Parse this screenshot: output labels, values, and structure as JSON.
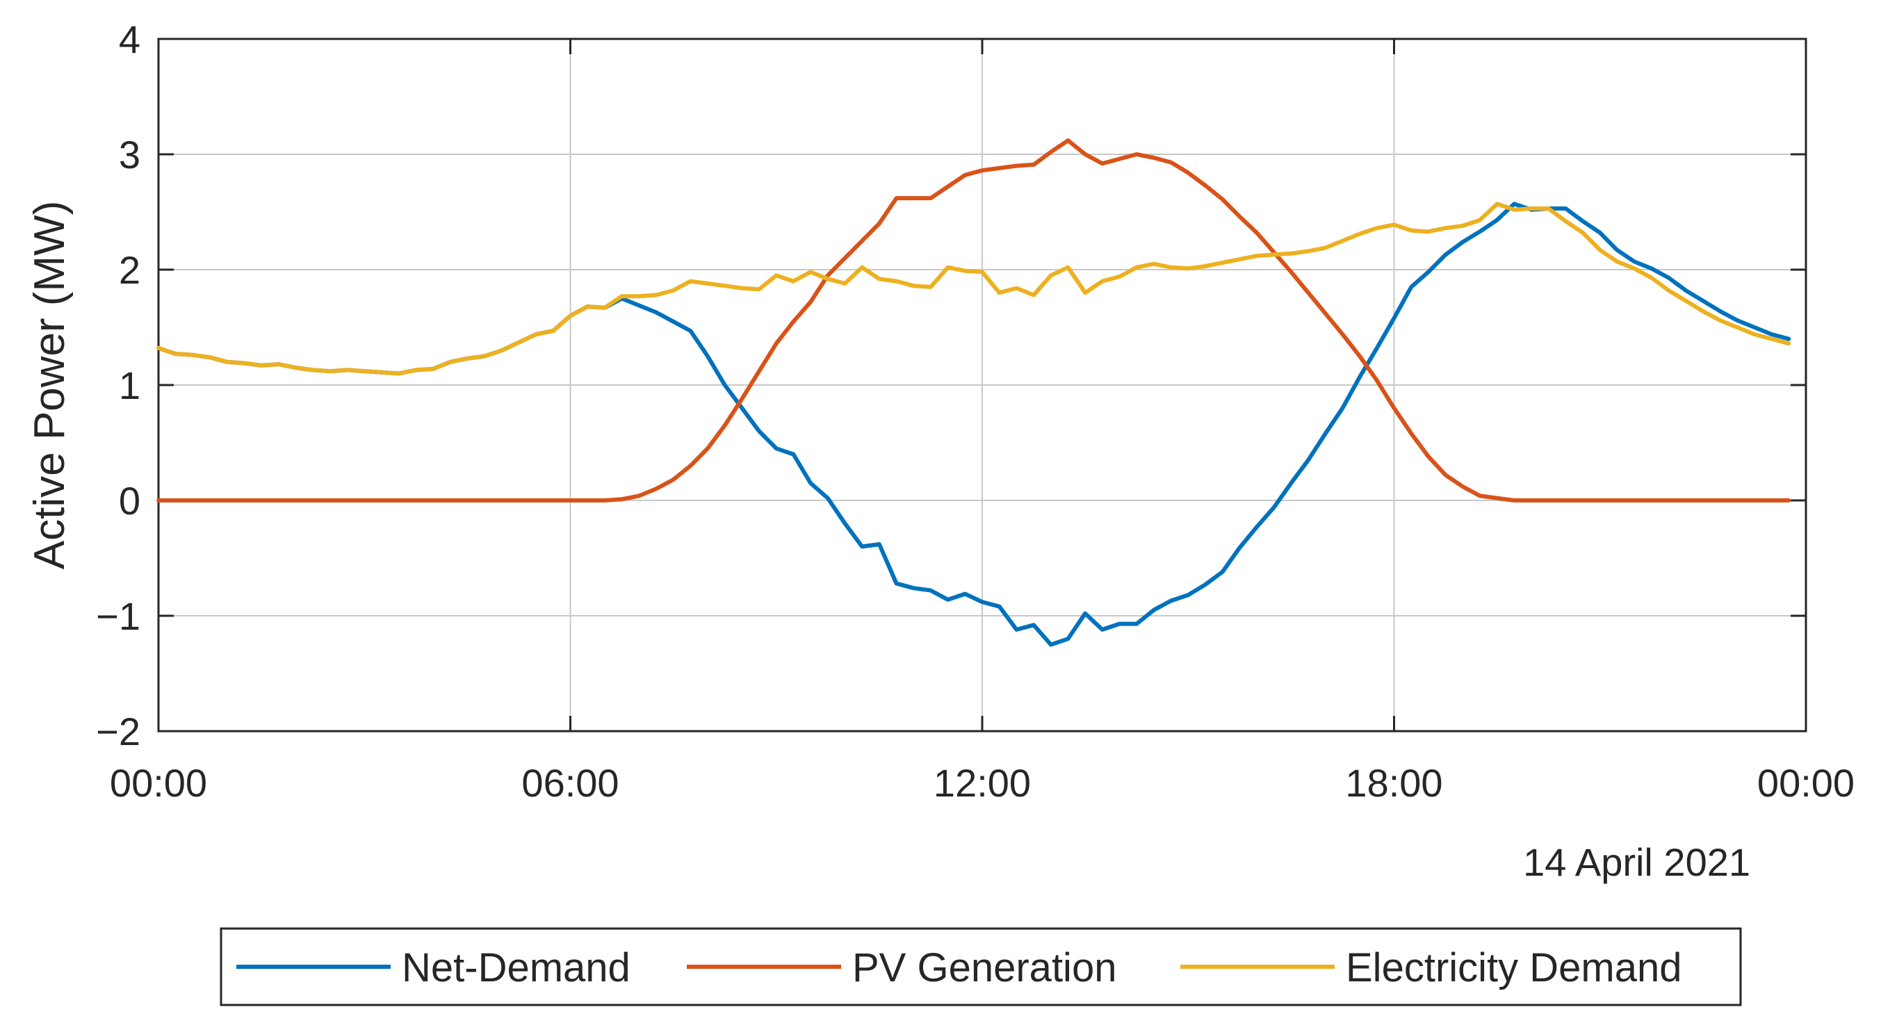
{
  "chart_data": {
    "type": "line",
    "title": "",
    "xlabel": "",
    "ylabel": "Active Power (MW)",
    "date_label": "14 April 2021",
    "x_range_hours": [
      0,
      24
    ],
    "ylim": [
      -2,
      4
    ],
    "grid": true,
    "legend_position": "bottom",
    "x_ticks": [
      {
        "hour": 0,
        "label": "00:00"
      },
      {
        "hour": 6,
        "label": "06:00"
      },
      {
        "hour": 12,
        "label": "12:00"
      },
      {
        "hour": 18,
        "label": "18:00"
      },
      {
        "hour": 24,
        "label": "00:00"
      }
    ],
    "y_ticks": [
      {
        "value": -2,
        "label": "−2"
      },
      {
        "value": -1,
        "label": "−1"
      },
      {
        "value": 0,
        "label": "0"
      },
      {
        "value": 1,
        "label": "1"
      },
      {
        "value": 2,
        "label": "2"
      },
      {
        "value": 3,
        "label": "3"
      },
      {
        "value": 4,
        "label": "4"
      }
    ],
    "x_hours": [
      0,
      0.25,
      0.5,
      0.75,
      1,
      1.25,
      1.5,
      1.75,
      2,
      2.25,
      2.5,
      2.75,
      3,
      3.25,
      3.5,
      3.75,
      4,
      4.25,
      4.5,
      4.75,
      5,
      5.25,
      5.5,
      5.75,
      6,
      6.25,
      6.5,
      6.75,
      7,
      7.25,
      7.5,
      7.75,
      8,
      8.25,
      8.5,
      8.75,
      9,
      9.25,
      9.5,
      9.75,
      10,
      10.25,
      10.5,
      10.75,
      11,
      11.25,
      11.5,
      11.75,
      12,
      12.25,
      12.5,
      12.75,
      13,
      13.25,
      13.5,
      13.75,
      14,
      14.25,
      14.5,
      14.75,
      15,
      15.25,
      15.5,
      15.75,
      16,
      16.25,
      16.5,
      16.75,
      17,
      17.25,
      17.5,
      17.75,
      18,
      18.25,
      18.5,
      18.75,
      19,
      19.25,
      19.5,
      19.75,
      20,
      20.25,
      20.5,
      20.75,
      21,
      21.25,
      21.5,
      21.75,
      22,
      22.25,
      22.5,
      22.75,
      23,
      23.25,
      23.5,
      23.75
    ],
    "series": [
      {
        "name": "Net-Demand",
        "color": "#0072BD",
        "values": [
          1.32,
          1.27,
          1.26,
          1.24,
          1.2,
          1.19,
          1.17,
          1.18,
          1.15,
          1.13,
          1.12,
          1.13,
          1.12,
          1.11,
          1.1,
          1.13,
          1.14,
          1.2,
          1.23,
          1.25,
          1.3,
          1.37,
          1.44,
          1.47,
          1.6,
          1.68,
          1.67,
          1.75,
          1.69,
          1.63,
          1.55,
          1.47,
          1.25,
          1.0,
          0.8,
          0.6,
          0.45,
          0.4,
          0.15,
          0.02,
          -0.2,
          -0.4,
          -0.38,
          -0.72,
          -0.76,
          -0.78,
          -0.86,
          -0.81,
          -0.88,
          -0.92,
          -1.12,
          -1.08,
          -1.25,
          -1.2,
          -0.98,
          -1.12,
          -1.07,
          -1.07,
          -0.95,
          -0.87,
          -0.82,
          -0.73,
          -0.62,
          -0.41,
          -0.23,
          -0.06,
          0.15,
          0.35,
          0.58,
          0.8,
          1.07,
          1.32,
          1.58,
          1.85,
          1.98,
          2.13,
          2.24,
          2.33,
          2.43,
          2.57,
          2.52,
          2.53,
          2.53,
          2.42,
          2.32,
          2.17,
          2.07,
          2.01,
          1.93,
          1.82,
          1.73,
          1.64,
          1.56,
          1.5,
          1.44,
          1.4
        ]
      },
      {
        "name": "PV Generation",
        "color": "#D95319",
        "values": [
          0,
          0,
          0,
          0,
          0,
          0,
          0,
          0,
          0,
          0,
          0,
          0,
          0,
          0,
          0,
          0,
          0,
          0,
          0,
          0,
          0,
          0,
          0,
          0,
          0,
          0,
          0,
          0.01,
          0.04,
          0.1,
          0.18,
          0.3,
          0.45,
          0.65,
          0.88,
          1.12,
          1.36,
          1.55,
          1.72,
          1.95,
          2.1,
          2.25,
          2.4,
          2.62,
          2.62,
          2.62,
          2.72,
          2.82,
          2.86,
          2.88,
          2.9,
          2.91,
          3.02,
          3.12,
          3.0,
          2.92,
          2.96,
          3.0,
          2.97,
          2.93,
          2.84,
          2.73,
          2.61,
          2.46,
          2.32,
          2.15,
          1.98,
          1.8,
          1.62,
          1.44,
          1.25,
          1.04,
          0.8,
          0.58,
          0.38,
          0.22,
          0.12,
          0.04,
          0.02,
          0,
          0,
          0,
          0,
          0,
          0,
          0,
          0,
          0,
          0,
          0,
          0,
          0,
          0,
          0,
          0,
          0
        ]
      },
      {
        "name": "Electricity Demand",
        "color": "#EDB120",
        "values": [
          1.32,
          1.27,
          1.26,
          1.24,
          1.2,
          1.19,
          1.17,
          1.18,
          1.15,
          1.13,
          1.12,
          1.13,
          1.12,
          1.11,
          1.1,
          1.13,
          1.14,
          1.2,
          1.23,
          1.25,
          1.3,
          1.37,
          1.44,
          1.47,
          1.6,
          1.68,
          1.67,
          1.77,
          1.77,
          1.78,
          1.82,
          1.9,
          1.88,
          1.86,
          1.84,
          1.83,
          1.95,
          1.9,
          1.98,
          1.92,
          1.88,
          2.02,
          1.92,
          1.9,
          1.86,
          1.85,
          2.02,
          1.99,
          1.98,
          1.8,
          1.84,
          1.78,
          1.95,
          2.02,
          1.8,
          1.9,
          1.94,
          2.02,
          2.05,
          2.02,
          2.01,
          2.03,
          2.06,
          2.09,
          2.12,
          2.13,
          2.14,
          2.16,
          2.19,
          2.25,
          2.31,
          2.36,
          2.39,
          2.34,
          2.33,
          2.36,
          2.38,
          2.43,
          2.57,
          2.52,
          2.53,
          2.53,
          2.42,
          2.32,
          2.17,
          2.07,
          2.01,
          1.93,
          1.82,
          1.73,
          1.64,
          1.56,
          1.5,
          1.44,
          1.4,
          1.36
        ]
      }
    ]
  }
}
